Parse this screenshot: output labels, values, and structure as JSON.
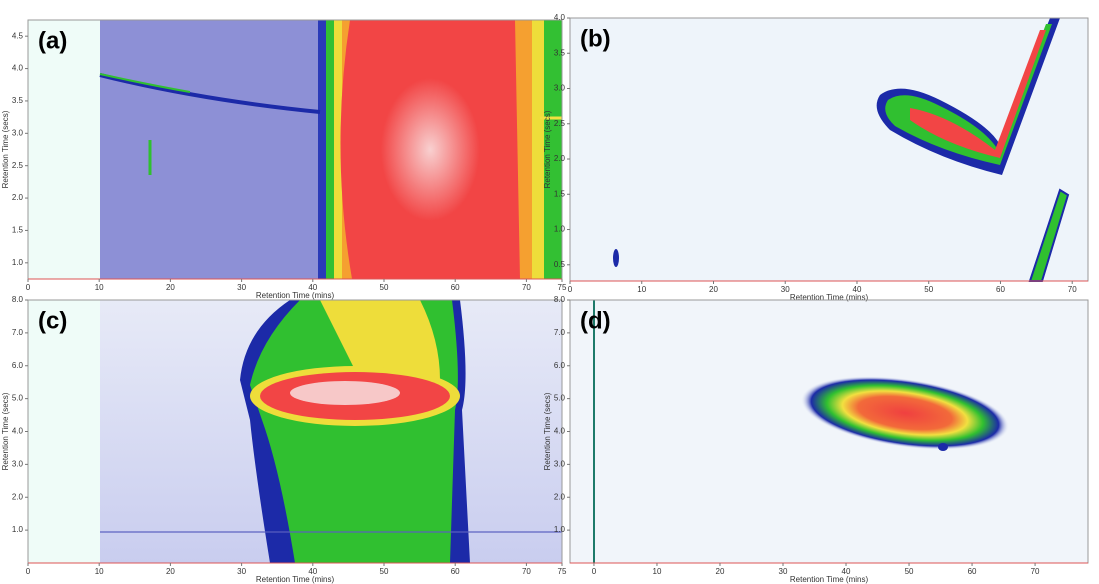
{
  "chart_data": [
    {
      "type": "contour",
      "panel": "(a)",
      "xlabel": "Retention Time (mins)",
      "ylabel": "Retention Time (secs)",
      "xlim": [
        0,
        75
      ],
      "xticks": [
        0,
        10,
        20,
        30,
        40,
        50,
        60,
        70,
        75
      ],
      "ylim": [
        0.75,
        4.75
      ],
      "yticks": [
        {
          "value": 1.0,
          "label": "1.0"
        },
        {
          "value": 1.5,
          "label": "1.5"
        },
        {
          "value": 2.0,
          "label": "2.0"
        },
        {
          "value": 2.5,
          "label": "2.5"
        },
        {
          "value": 3.0,
          "label": "3.0"
        },
        {
          "value": 3.5,
          "label": "3.5"
        },
        {
          "value": 4.0,
          "label": "4.0"
        },
        {
          "value": 4.5,
          "label": "4.5"
        }
      ]
    },
    {
      "type": "contour",
      "panel": "(b)",
      "xlabel": "Retention Time (mins)",
      "ylabel": "Retention Time (secs)",
      "xlim": [
        0,
        72.2
      ],
      "xticks": [
        0,
        10,
        20,
        30,
        40,
        50,
        60,
        70
      ],
      "ylim": [
        0.27,
        4.0
      ],
      "yticks": [
        0.5,
        {
          "value": 1.0,
          "label": "1.0"
        },
        1.5,
        {
          "value": 2.0,
          "label": "2.0"
        },
        2.5,
        {
          "value": 3.0,
          "label": "3.0"
        },
        3.5,
        {
          "value": 4.0,
          "label": "4.0"
        }
      ]
    },
    {
      "type": "contour",
      "panel": "(c)",
      "xlabel": "Retention Time (mins)",
      "ylabel": "Retention Time (secs)",
      "xlim": [
        0,
        75
      ],
      "xticks": [
        0,
        10,
        20,
        30,
        40,
        50,
        60,
        70,
        75
      ],
      "ylim": [
        0,
        8
      ],
      "yticks": [
        {
          "value": 1.0,
          "label": "1.0"
        },
        {
          "value": 2.0,
          "label": "2.0"
        },
        {
          "value": 3.0,
          "label": "3.0"
        },
        {
          "value": 4.0,
          "label": "4.0"
        },
        {
          "value": 5.0,
          "label": "5.0"
        },
        {
          "value": 6.0,
          "label": "6.0"
        },
        {
          "value": 7.0,
          "label": "7.0"
        },
        {
          "value": 8.0,
          "label": "8.0"
        }
      ]
    },
    {
      "type": "contour",
      "panel": "(d)",
      "xlabel": "Retention Time (mins)",
      "ylabel": "Retention Time (secs)",
      "xlim": [
        -3.8,
        78.4
      ],
      "xticks": [
        0,
        10,
        20,
        30,
        40,
        50,
        60,
        70
      ],
      "ylim": [
        0,
        8
      ],
      "yticks": [
        {
          "value": 1.0,
          "label": "1.0"
        },
        {
          "value": 2.0,
          "label": "2.0"
        },
        {
          "value": 3.0,
          "label": "3.0"
        },
        {
          "value": 4.0,
          "label": "4.0"
        },
        {
          "value": 5.0,
          "label": "5.0"
        },
        {
          "value": 6.0,
          "label": "6.0"
        },
        {
          "value": 7.0,
          "label": "7.0"
        },
        {
          "value": 8.0,
          "label": "8.0"
        }
      ]
    }
  ]
}
